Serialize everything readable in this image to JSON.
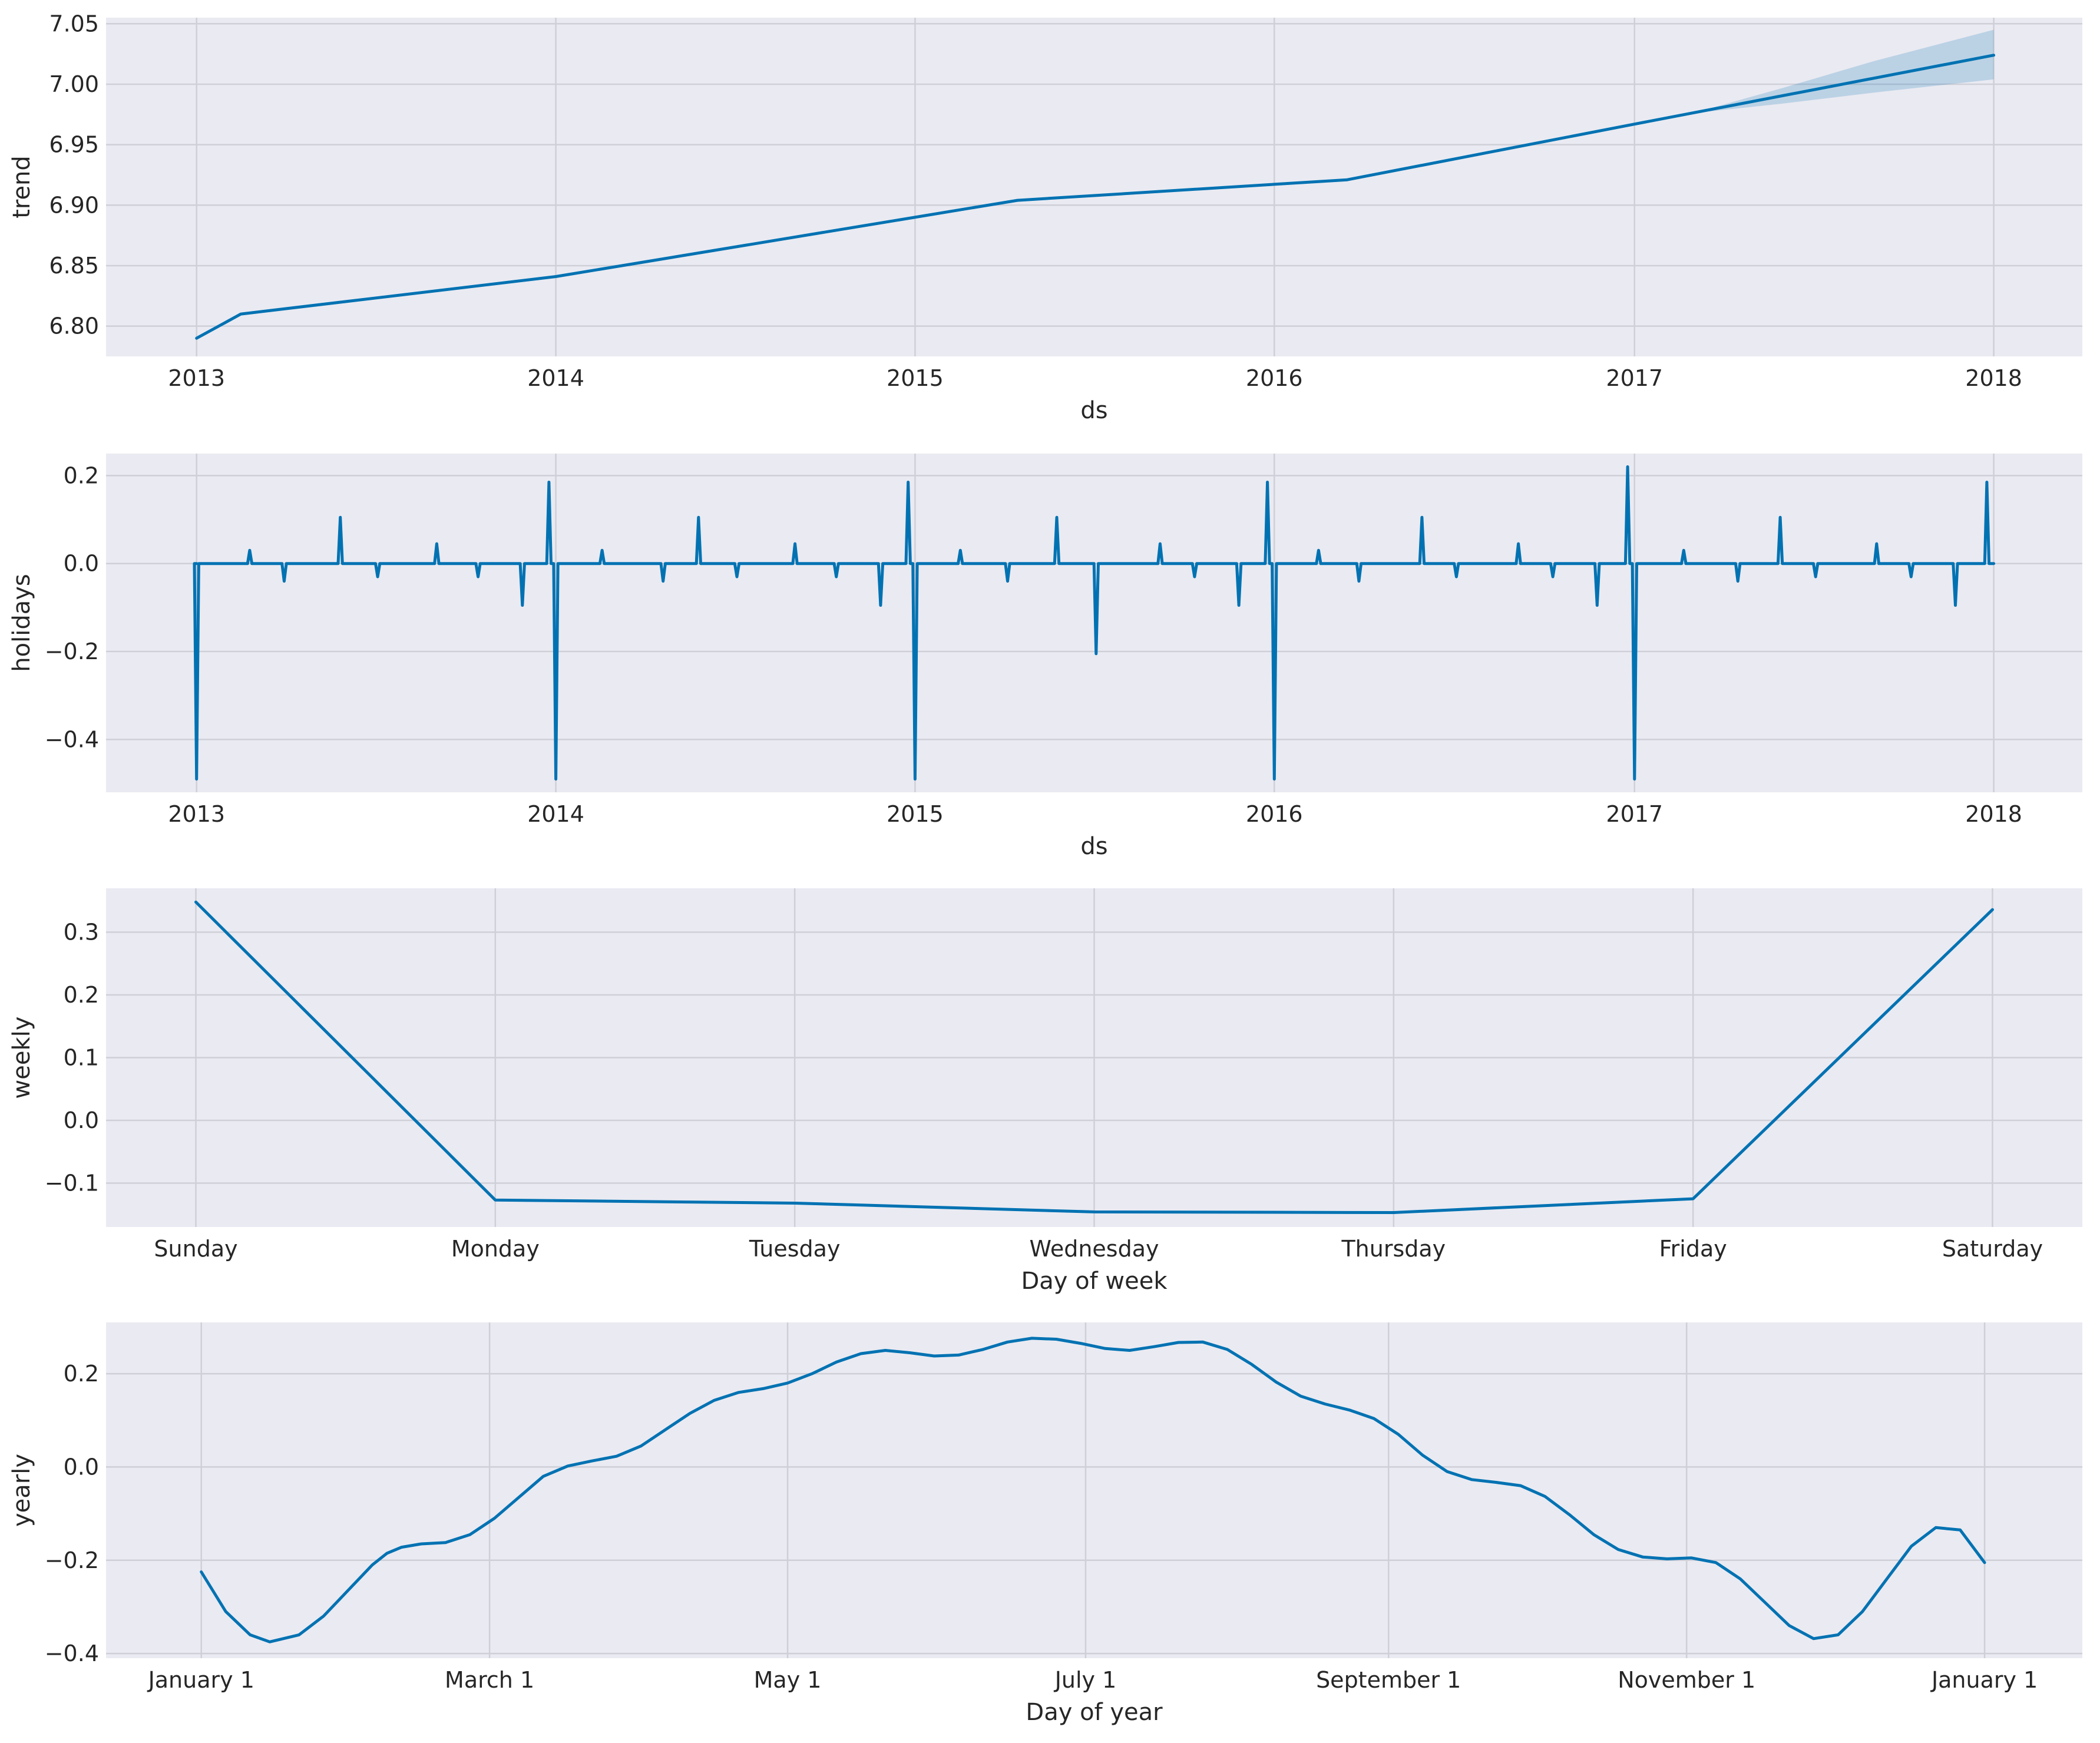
{
  "chart_data": [
    {
      "type": "line",
      "xlabel": "ds",
      "ylabel": "trend",
      "x_type": "date",
      "xlim": [
        "2012-10-01",
        "2018-04-01"
      ],
      "ylim": [
        6.775,
        7.055
      ],
      "x_ticks": [
        "2013-01-01",
        "2014-01-01",
        "2015-01-01",
        "2016-01-01",
        "2017-01-01",
        "2018-01-01"
      ],
      "x_tick_labels": [
        "2013",
        "2014",
        "2015",
        "2016",
        "2017",
        "2018"
      ],
      "y_ticks": [
        6.8,
        6.85,
        6.9,
        6.95,
        7.0,
        7.05
      ],
      "y_tick_labels": [
        "6.80",
        "6.85",
        "6.90",
        "6.95",
        "7.00",
        "7.05"
      ],
      "grid": true,
      "series": [
        {
          "x": [
            "2013-01-01",
            "2013-02-15",
            "2014-01-01",
            "2015-04-15",
            "2016-03-15",
            "2017-01-01",
            "2018-01-01"
          ],
          "y": [
            6.79,
            6.81,
            6.841,
            6.904,
            6.921,
            6.967,
            7.024
          ]
        }
      ],
      "band": {
        "x": [
          "2017-03-01",
          "2017-06-01",
          "2017-09-01",
          "2018-01-01"
        ],
        "lower": [
          6.976,
          6.984,
          6.993,
          7.004
        ],
        "upper": [
          6.976,
          6.997,
          7.019,
          7.045
        ]
      }
    },
    {
      "type": "line",
      "xlabel": "ds",
      "ylabel": "holidays",
      "x_type": "date",
      "xlim": [
        "2012-10-01",
        "2018-04-01"
      ],
      "ylim": [
        -0.52,
        0.25
      ],
      "x_ticks": [
        "2013-01-01",
        "2014-01-01",
        "2015-01-01",
        "2016-01-01",
        "2017-01-01",
        "2018-01-01"
      ],
      "x_tick_labels": [
        "2013",
        "2014",
        "2015",
        "2016",
        "2017",
        "2018"
      ],
      "y_ticks": [
        -0.4,
        -0.2,
        0.0,
        0.2
      ],
      "y_tick_labels": [
        "−0.4",
        "−0.2",
        "0.0",
        "0.2"
      ],
      "grid": true,
      "series": [
        {
          "baseline": 0.0,
          "start": "2013-01-01",
          "end": "2018-01-01",
          "spikes": [
            {
              "x": "2013-01-01",
              "y": -0.49
            },
            {
              "x": "2013-02-24",
              "y": 0.03
            },
            {
              "x": "2013-03-31",
              "y": -0.04
            },
            {
              "x": "2013-05-27",
              "y": 0.105
            },
            {
              "x": "2013-07-04",
              "y": -0.03
            },
            {
              "x": "2013-09-02",
              "y": 0.045
            },
            {
              "x": "2013-10-14",
              "y": -0.03
            },
            {
              "x": "2013-11-28",
              "y": -0.095
            },
            {
              "x": "2013-12-25",
              "y": 0.185
            },
            {
              "x": "2014-01-01",
              "y": -0.49
            },
            {
              "x": "2014-02-17",
              "y": 0.03
            },
            {
              "x": "2014-04-20",
              "y": -0.04
            },
            {
              "x": "2014-05-26",
              "y": 0.105
            },
            {
              "x": "2014-07-04",
              "y": -0.03
            },
            {
              "x": "2014-09-01",
              "y": 0.045
            },
            {
              "x": "2014-10-13",
              "y": -0.03
            },
            {
              "x": "2014-11-27",
              "y": -0.095
            },
            {
              "x": "2014-12-25",
              "y": 0.185
            },
            {
              "x": "2015-01-01",
              "y": -0.49
            },
            {
              "x": "2015-02-16",
              "y": 0.03
            },
            {
              "x": "2015-04-05",
              "y": -0.04
            },
            {
              "x": "2015-05-25",
              "y": 0.105
            },
            {
              "x": "2015-07-04",
              "y": -0.205
            },
            {
              "x": "2015-09-07",
              "y": 0.045
            },
            {
              "x": "2015-10-12",
              "y": -0.03
            },
            {
              "x": "2015-11-26",
              "y": -0.095
            },
            {
              "x": "2015-12-25",
              "y": 0.185
            },
            {
              "x": "2016-01-01",
              "y": -0.49
            },
            {
              "x": "2016-02-15",
              "y": 0.03
            },
            {
              "x": "2016-03-27",
              "y": -0.04
            },
            {
              "x": "2016-05-30",
              "y": 0.105
            },
            {
              "x": "2016-07-04",
              "y": -0.03
            },
            {
              "x": "2016-09-05",
              "y": 0.045
            },
            {
              "x": "2016-10-10",
              "y": -0.03
            },
            {
              "x": "2016-11-24",
              "y": -0.095
            },
            {
              "x": "2016-12-25",
              "y": 0.22
            },
            {
              "x": "2017-01-01",
              "y": -0.49
            },
            {
              "x": "2017-02-20",
              "y": 0.03
            },
            {
              "x": "2017-04-16",
              "y": -0.04
            },
            {
              "x": "2017-05-29",
              "y": 0.105
            },
            {
              "x": "2017-07-04",
              "y": -0.03
            },
            {
              "x": "2017-09-04",
              "y": 0.045
            },
            {
              "x": "2017-10-09",
              "y": -0.03
            },
            {
              "x": "2017-11-23",
              "y": -0.095
            },
            {
              "x": "2017-12-25",
              "y": 0.185
            }
          ]
        }
      ]
    },
    {
      "type": "line",
      "xlabel": "Day of week",
      "ylabel": "weekly",
      "categories": [
        "Sunday",
        "Monday",
        "Tuesday",
        "Wednesday",
        "Thursday",
        "Friday",
        "Saturday"
      ],
      "xlim": [
        -0.3,
        6.3
      ],
      "ylim": [
        -0.17,
        0.37
      ],
      "y_ticks": [
        -0.1,
        0.0,
        0.1,
        0.2,
        0.3
      ],
      "y_tick_labels": [
        "−0.1",
        "0.0",
        "0.1",
        "0.2",
        "0.3"
      ],
      "grid": true,
      "series": [
        {
          "values": [
            0.348,
            -0.127,
            -0.132,
            -0.146,
            -0.147,
            -0.125,
            0.336
          ]
        }
      ]
    },
    {
      "type": "line",
      "xlabel": "Day of year",
      "ylabel": "yearly",
      "x_type": "day_of_year",
      "xlim": [
        -19.5,
        385
      ],
      "ylim": [
        -0.41,
        0.31
      ],
      "x_ticks": [
        0,
        59,
        120,
        181,
        243,
        304,
        365
      ],
      "x_tick_labels": [
        "January 1",
        "March 1",
        "May 1",
        "July 1",
        "September 1",
        "November 1",
        "January 1"
      ],
      "y_ticks": [
        -0.4,
        -0.2,
        0.0,
        0.2
      ],
      "y_tick_labels": [
        "−0.4",
        "−0.2",
        "0.0",
        "0.2"
      ],
      "grid": true,
      "series": [
        {
          "x": [
            0,
            5,
            10,
            14,
            20,
            25,
            30,
            35,
            38,
            41,
            45,
            50,
            55,
            60,
            65,
            70,
            75,
            80,
            85,
            90,
            95,
            100,
            105,
            110,
            115,
            120,
            125,
            130,
            135,
            140,
            145,
            150,
            155,
            160,
            165,
            170,
            175,
            180,
            185,
            190,
            195,
            200,
            205,
            210,
            215,
            220,
            225,
            230,
            235,
            240,
            245,
            250,
            255,
            260,
            265,
            270,
            275,
            280,
            285,
            290,
            295,
            300,
            305,
            310,
            315,
            320,
            325,
            330,
            335,
            340,
            345,
            350,
            355,
            360,
            365
          ],
          "y": [
            -0.225,
            -0.31,
            -0.36,
            -0.375,
            -0.36,
            -0.32,
            -0.265,
            -0.21,
            -0.185,
            -0.172,
            -0.165,
            -0.162,
            -0.145,
            -0.11,
            -0.065,
            -0.02,
            0.002,
            0.013,
            0.023,
            0.045,
            0.08,
            0.115,
            0.143,
            0.16,
            0.168,
            0.18,
            0.2,
            0.225,
            0.243,
            0.25,
            0.245,
            0.238,
            0.24,
            0.252,
            0.268,
            0.276,
            0.274,
            0.265,
            0.254,
            0.25,
            0.258,
            0.267,
            0.268,
            0.252,
            0.22,
            0.182,
            0.152,
            0.135,
            0.122,
            0.104,
            0.07,
            0.025,
            -0.01,
            -0.027,
            -0.033,
            -0.04,
            -0.063,
            -0.102,
            -0.145,
            -0.177,
            -0.193,
            -0.197,
            -0.195,
            -0.205,
            -0.24,
            -0.29,
            -0.34,
            -0.368,
            -0.36,
            -0.31,
            -0.24,
            -0.17,
            -0.13,
            -0.135,
            -0.205
          ]
        }
      ]
    }
  ]
}
